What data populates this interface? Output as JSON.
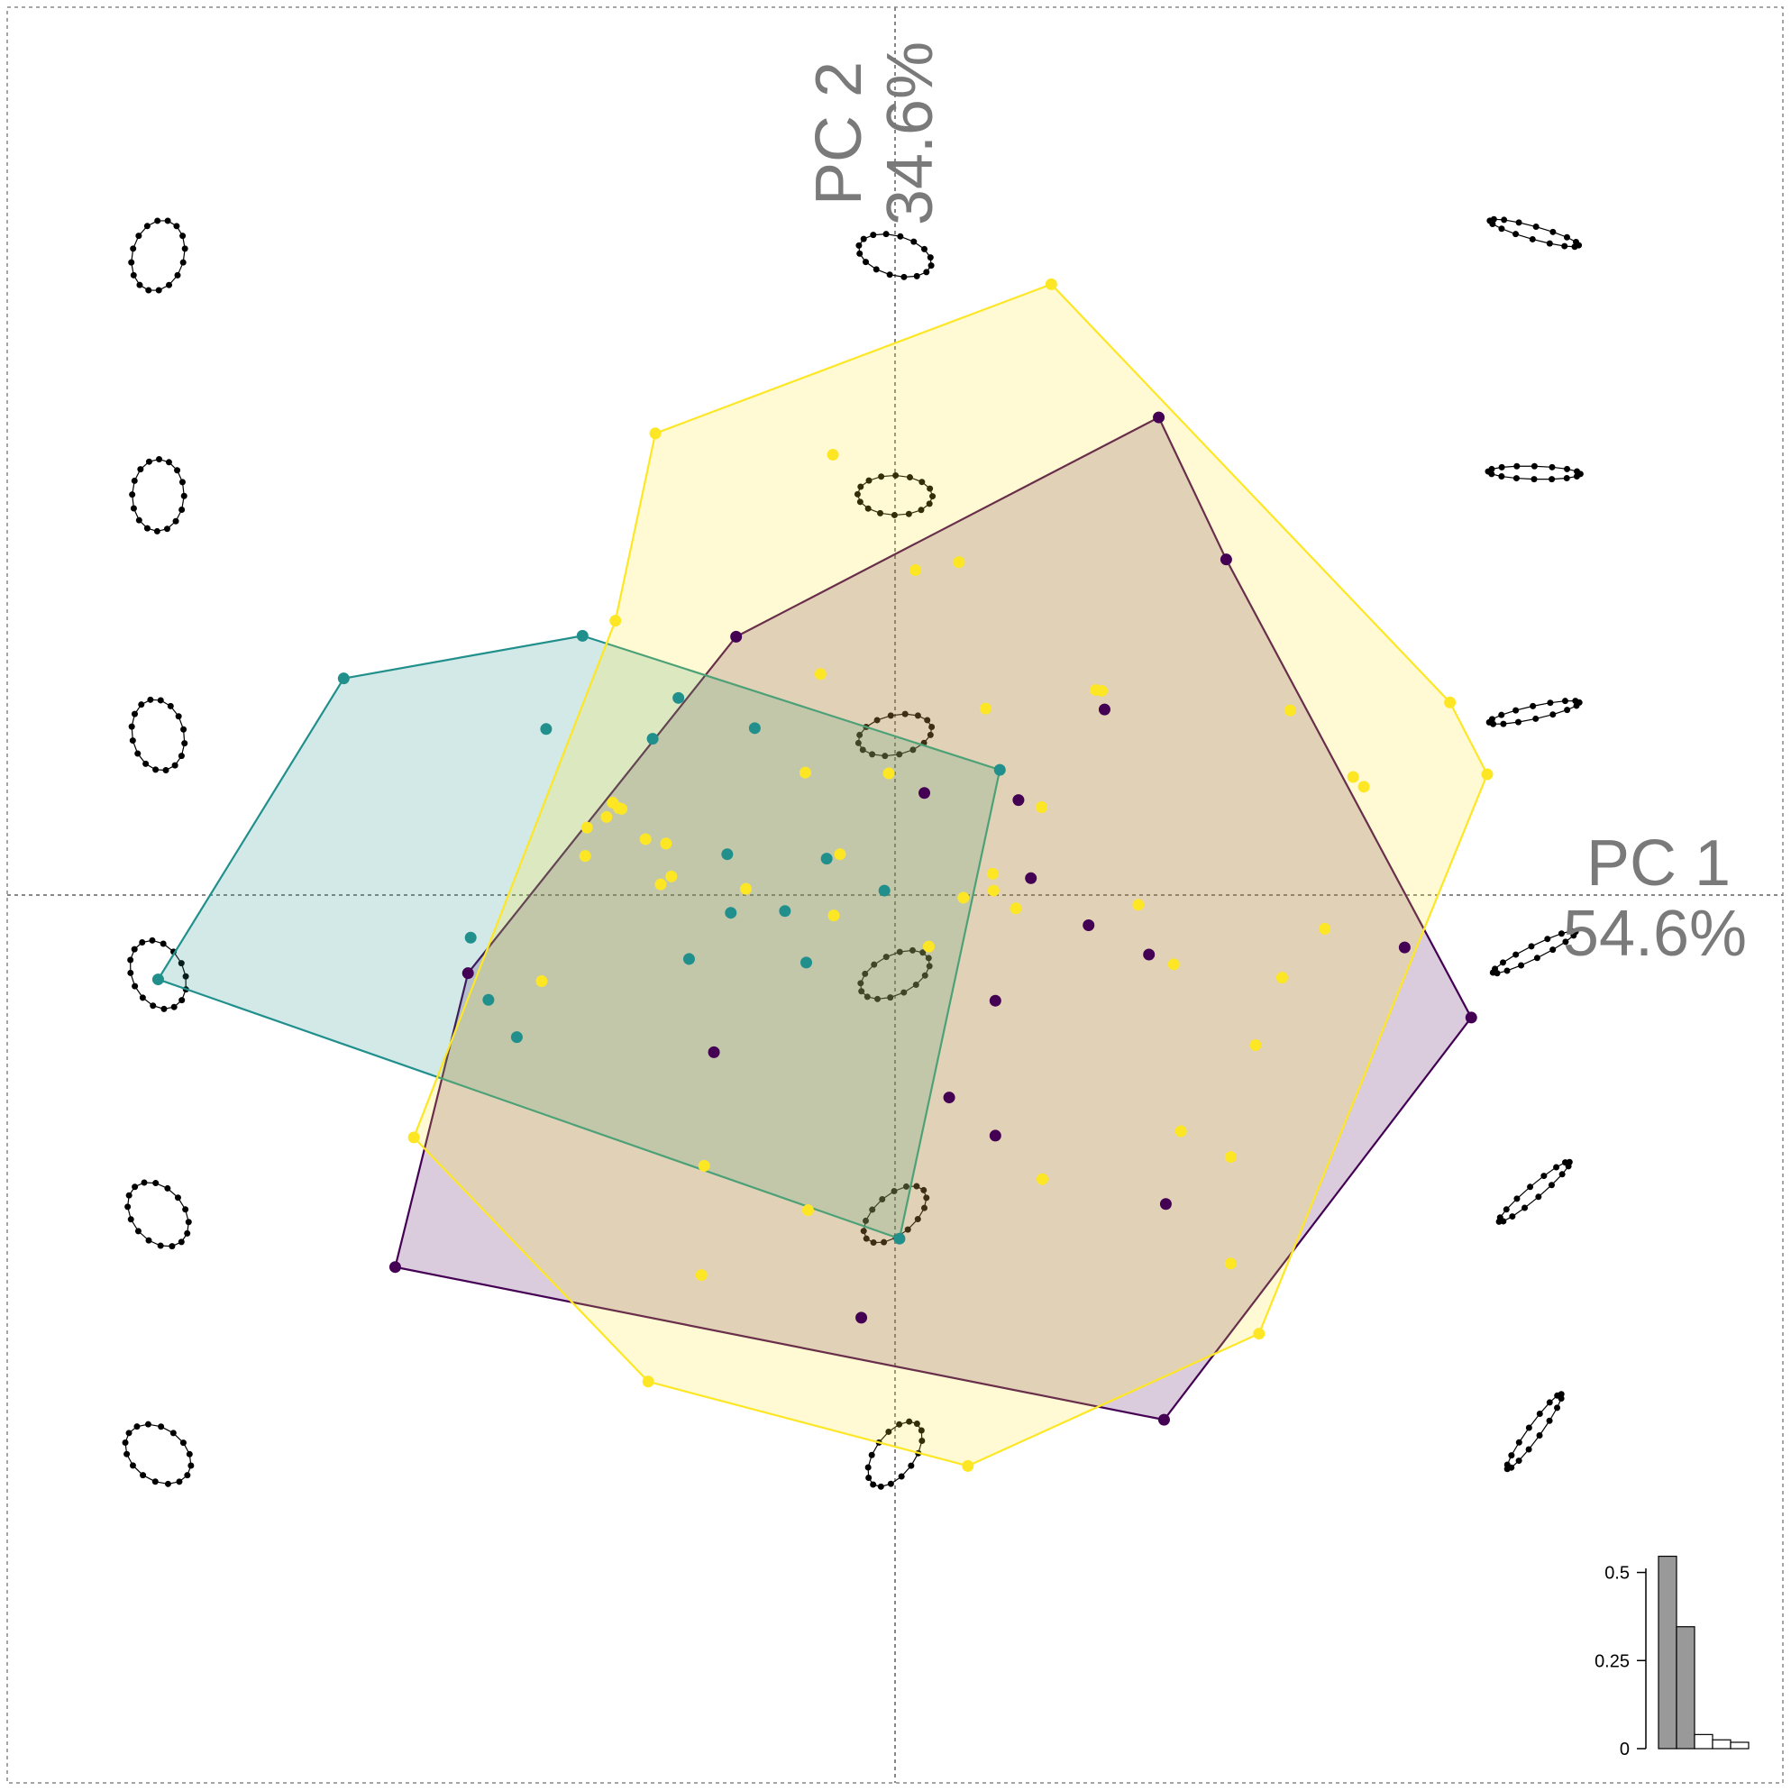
{
  "chart_data": {
    "type": "scatter",
    "subtype": "PCA morphospace with convex hulls",
    "axes": {
      "x": {
        "label": "PC 1",
        "variance": "54.6%",
        "range": [
          -1.0,
          1.0
        ]
      },
      "y": {
        "label": "PC 2",
        "variance": "34.6%",
        "range": [
          -1.0,
          1.0
        ]
      }
    },
    "grid": "dashed zero lines and frame",
    "colors": {
      "purple": "#440154",
      "teal": "#21908C",
      "yellow": "#FDE725",
      "axis_text": "#7a7a7a"
    },
    "series": [
      {
        "color": "#440154",
        "points": [
          [
            0.297,
            0.538
          ],
          [
            0.373,
            0.378
          ],
          [
            -0.179,
            0.291
          ],
          [
            0.236,
            0.209
          ],
          [
            0.033,
            0.115
          ],
          [
            0.139,
            0.107
          ],
          [
            0.153,
            0.019
          ],
          [
            0.218,
            -0.034
          ],
          [
            0.286,
            -0.067
          ],
          [
            0.574,
            -0.059
          ],
          [
            -0.481,
            -0.088
          ],
          [
            0.113,
            -0.119
          ],
          [
            0.649,
            -0.138
          ],
          [
            -0.204,
            -0.177
          ],
          [
            0.061,
            -0.228
          ],
          [
            0.113,
            -0.271
          ],
          [
            0.305,
            -0.348
          ],
          [
            -0.563,
            -0.419
          ],
          [
            -0.038,
            -0.476
          ],
          [
            0.303,
            -0.591
          ]
        ],
        "hull": [
          [
            0.297,
            0.538
          ],
          [
            0.373,
            0.378
          ],
          [
            0.649,
            -0.138
          ],
          [
            0.303,
            -0.591
          ],
          [
            -0.563,
            -0.419
          ],
          [
            -0.481,
            -0.088
          ],
          [
            -0.179,
            0.291
          ]
        ]
      },
      {
        "color": "#21908C",
        "points": [
          [
            -0.352,
            0.292
          ],
          [
            -0.621,
            0.244
          ],
          [
            -0.244,
            0.222
          ],
          [
            -0.393,
            0.187
          ],
          [
            -0.273,
            0.176
          ],
          [
            -0.158,
            0.188
          ],
          [
            0.118,
            0.141
          ],
          [
            -0.189,
            0.046
          ],
          [
            -0.077,
            0.041
          ],
          [
            -0.012,
            0.005
          ],
          [
            -0.185,
            -0.02
          ],
          [
            -0.124,
            -0.018
          ],
          [
            -0.478,
            -0.048
          ],
          [
            -0.232,
            -0.072
          ],
          [
            -0.1,
            -0.076
          ],
          [
            -0.83,
            -0.095
          ],
          [
            -0.458,
            -0.118
          ],
          [
            -0.426,
            -0.16
          ],
          [
            0.005,
            -0.387
          ]
        ],
        "hull": [
          [
            -0.352,
            0.292
          ],
          [
            0.118,
            0.141
          ],
          [
            0.005,
            -0.387
          ],
          [
            -0.83,
            -0.095
          ],
          [
            -0.621,
            0.244
          ]
        ]
      },
      {
        "color": "#FDE725",
        "points": [
          [
            0.176,
            0.688
          ],
          [
            -0.27,
            0.52
          ],
          [
            -0.07,
            0.496
          ],
          [
            0.072,
            0.375
          ],
          [
            0.023,
            0.366
          ],
          [
            -0.315,
            0.309
          ],
          [
            -0.084,
            0.249
          ],
          [
            0.226,
            0.231
          ],
          [
            0.233,
            0.23
          ],
          [
            0.102,
            0.21
          ],
          [
            0.445,
            0.208
          ],
          [
            0.625,
            0.217
          ],
          [
            0.667,
            0.136
          ],
          [
            0.516,
            0.133
          ],
          [
            0.528,
            0.122
          ],
          [
            -0.101,
            0.138
          ],
          [
            -0.007,
            0.137
          ],
          [
            0.165,
            0.099
          ],
          [
            -0.311,
            0.098
          ],
          [
            -0.318,
            0.104
          ],
          [
            -0.308,
            0.097
          ],
          [
            -0.325,
            0.088
          ],
          [
            -0.281,
            0.063
          ],
          [
            -0.347,
            0.076
          ],
          [
            -0.349,
            0.044
          ],
          [
            -0.062,
            0.046
          ],
          [
            -0.258,
            0.058
          ],
          [
            -0.252,
            0.021
          ],
          [
            -0.264,
            0.012
          ],
          [
            -0.168,
            0.007
          ],
          [
            0.11,
            0.024
          ],
          [
            0.111,
            0.005
          ],
          [
            0.136,
            -0.015
          ],
          [
            0.274,
            -0.011
          ],
          [
            0.077,
            -0.003
          ],
          [
            -0.069,
            -0.023
          ],
          [
            0.484,
            -0.038
          ],
          [
            0.038,
            -0.058
          ],
          [
            0.314,
            -0.078
          ],
          [
            0.436,
            -0.093
          ],
          [
            -0.398,
            -0.097
          ],
          [
            0.406,
            -0.169
          ],
          [
            0.322,
            -0.266
          ],
          [
            0.378,
            -0.295
          ],
          [
            -0.215,
            -0.305
          ],
          [
            0.166,
            -0.32
          ],
          [
            -0.098,
            -0.355
          ],
          [
            0.378,
            -0.415
          ],
          [
            -0.218,
            -0.428
          ],
          [
            0.41,
            -0.494
          ],
          [
            -0.278,
            -0.548
          ],
          [
            0.082,
            -0.643
          ],
          [
            -0.542,
            -0.273
          ]
        ],
        "hull": [
          [
            0.176,
            0.688
          ],
          [
            0.625,
            0.217
          ],
          [
            0.667,
            0.136
          ],
          [
            0.41,
            -0.494
          ],
          [
            0.082,
            -0.643
          ],
          [
            -0.278,
            -0.548
          ],
          [
            -0.542,
            -0.273
          ],
          [
            -0.315,
            0.309
          ],
          [
            -0.27,
            0.52
          ]
        ]
      }
    ],
    "scree": {
      "type": "bar",
      "values": [
        0.546,
        0.346,
        0.04,
        0.025,
        0.018
      ],
      "retained": 2,
      "ticks": [
        "0",
        "0.25",
        "0.5"
      ],
      "ylim": [
        0,
        0.55
      ]
    },
    "shapes_grid": {
      "pc1_levels": [
        -0.83,
        0.0,
        0.72
      ],
      "pc2_levels": [
        0.7,
        0.43,
        0.16,
        -0.11,
        -0.38,
        -0.65
      ]
    }
  }
}
